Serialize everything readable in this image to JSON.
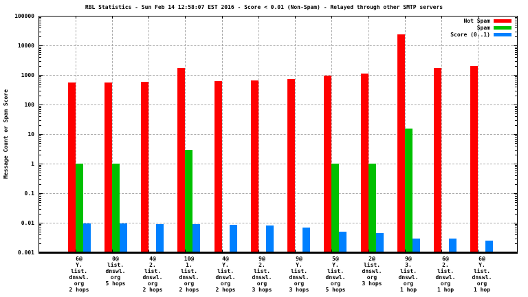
{
  "chart_data": {
    "type": "bar",
    "title": "RBL Statistics - Sun Feb 14 12:58:07 EST 2016 - Score < 0.01 (Non-Spam) - Relayed through other SMTP servers",
    "ylabel": "Message Count or Spam Score",
    "xlabel": "",
    "yscale": "log",
    "ylim": [
      0.001,
      100000
    ],
    "ytick_labels": [
      "100000",
      "10000",
      "1000",
      "100",
      "10",
      "1",
      "0.1",
      "0.01",
      "0.001"
    ],
    "grid": true,
    "legend_position": "top-right-inside",
    "background_color": "#ffffff",
    "gridline_color": "#a9a9a9",
    "categories": [
      [
        "6@",
        "Y.",
        "list.",
        "dnswl.",
        "org",
        "2 hops"
      ],
      [
        "0@",
        "list.",
        "dnswl.",
        "org",
        "5 hops"
      ],
      [
        "4@",
        "2.",
        "list.",
        "dnswl.",
        "org",
        "2 hops"
      ],
      [
        "10@",
        "1.",
        "list.",
        "dnswl.",
        "org",
        "2 hops"
      ],
      [
        "4@",
        "Y.",
        "list.",
        "dnswl.",
        "org",
        "2 hops"
      ],
      [
        "9@",
        "2.",
        "list.",
        "dnswl.",
        "org",
        "3 hops"
      ],
      [
        "9@",
        "Y.",
        "list.",
        "dnswl.",
        "org",
        "3 hops"
      ],
      [
        "5@",
        "Y.",
        "list.",
        "dnswl.",
        "org",
        "5 hops"
      ],
      [
        "2@",
        "list.",
        "dnswl.",
        "org",
        "3 hops"
      ],
      [
        "9@",
        "3.",
        "list.",
        "dnswl.",
        "org",
        "1 hop"
      ],
      [
        "6@",
        "2.",
        "list.",
        "dnswl.",
        "org",
        "1 hop"
      ],
      [
        "6@",
        "Y.",
        "list.",
        "dnswl.",
        "org",
        "1 hop"
      ]
    ],
    "series": [
      {
        "name": "Not Spam",
        "color": "#ff0000",
        "values": [
          550,
          550,
          580,
          1700,
          620,
          650,
          720,
          950,
          1100,
          24000,
          1750,
          2000
        ]
      },
      {
        "name": "Spam",
        "color": "#00c000",
        "values": [
          1,
          1,
          0,
          3,
          0,
          0,
          0,
          1,
          1,
          15,
          0,
          0
        ]
      },
      {
        "name": "Score (0..1)",
        "color": "#0080ff",
        "values": [
          0.0095,
          0.0095,
          0.009,
          0.009,
          0.0085,
          0.008,
          0.007,
          0.005,
          0.0045,
          0.003,
          0.003,
          0.0025
        ]
      }
    ]
  }
}
